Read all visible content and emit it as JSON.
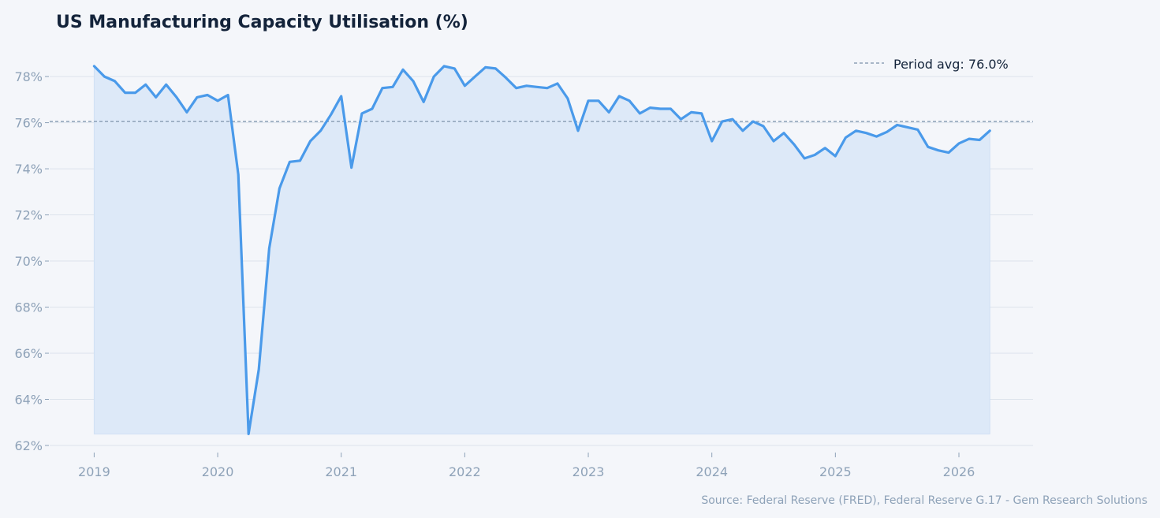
{
  "chart_data": {
    "type": "area",
    "title": "US Manufacturing Capacity Utilisation (%)",
    "source": "Source: Federal Reserve (FRED), Federal Reserve G.17 - Gem Research Solutions",
    "y_unit": "%",
    "ylim": [
      62,
      79.2
    ],
    "xlim": [
      2018.64,
      2026.6
    ],
    "y_ticks": [
      62,
      64,
      66,
      68,
      70,
      72,
      74,
      76,
      78
    ],
    "y_tick_labels": [
      "62%",
      "64%",
      "66%",
      "68%",
      "70%",
      "72%",
      "74%",
      "76%",
      "78%"
    ],
    "x_ticks": [
      2019,
      2020,
      2021,
      2022,
      2023,
      2024,
      2025,
      2026
    ],
    "x_tick_labels": [
      "2019",
      "2020",
      "2021",
      "2022",
      "2023",
      "2024",
      "2025",
      "2026"
    ],
    "grid": true,
    "legend_placement": "top-right",
    "reference_line": {
      "label": "Period avg: 76.0%",
      "value": 76.05
    },
    "colors": {
      "line": "#4a9aea",
      "fill": "#dde9f8",
      "avg_line": "#8ea2b8",
      "grid": "#dde3ec",
      "background": "#f4f6fa",
      "title": "#13233a",
      "ticks": "#8ea2b8"
    },
    "series": [
      {
        "x": [
          2019.0,
          2019.083,
          2019.167,
          2019.25,
          2019.333,
          2019.417,
          2019.5,
          2019.583,
          2019.667,
          2019.75,
          2019.833,
          2019.917,
          2020.0,
          2020.083,
          2020.167,
          2020.25,
          2020.333,
          2020.417,
          2020.5,
          2020.583,
          2020.667,
          2020.75,
          2020.833,
          2020.917,
          2021.0,
          2021.083,
          2021.167,
          2021.25,
          2021.333,
          2021.417,
          2021.5,
          2021.583,
          2021.667,
          2021.75,
          2021.833,
          2021.917,
          2022.0,
          2022.083,
          2022.167,
          2022.25,
          2022.333,
          2022.417,
          2022.5,
          2022.583,
          2022.667,
          2022.75,
          2022.833,
          2022.917,
          2023.0,
          2023.083,
          2023.167,
          2023.25,
          2023.333,
          2023.417,
          2023.5,
          2023.583,
          2023.667,
          2023.75,
          2023.833,
          2023.917,
          2024.0,
          2024.083,
          2024.167,
          2024.25,
          2024.333,
          2024.417,
          2024.5,
          2024.583,
          2024.667,
          2024.75,
          2024.833,
          2024.917,
          2025.0,
          2025.083,
          2025.167,
          2025.25,
          2025.333,
          2025.417,
          2025.5,
          2025.583,
          2025.667,
          2025.75,
          2025.833,
          2025.917,
          2026.0,
          2026.083,
          2026.167,
          2026.25
        ],
        "values": [
          78.45,
          78.0,
          77.8,
          77.3,
          77.3,
          77.65,
          77.1,
          77.65,
          77.1,
          76.45,
          77.1,
          77.2,
          76.95,
          77.2,
          73.75,
          62.5,
          65.3,
          70.55,
          73.15,
          74.3,
          74.35,
          75.2,
          75.65,
          76.35,
          77.15,
          74.05,
          76.4,
          76.6,
          77.5,
          77.55,
          78.3,
          77.8,
          76.9,
          78.0,
          78.45,
          78.35,
          77.6,
          78.0,
          78.4,
          78.35,
          77.95,
          77.5,
          77.6,
          77.55,
          77.5,
          77.7,
          77.05,
          75.65,
          76.95,
          76.95,
          76.45,
          77.15,
          76.95,
          76.4,
          76.65,
          76.6,
          76.6,
          76.15,
          76.45,
          76.4,
          75.2,
          76.05,
          76.15,
          75.65,
          76.05,
          75.85,
          75.2,
          75.55,
          75.05,
          74.45,
          74.6,
          74.9,
          74.55,
          75.35,
          75.65,
          75.55,
          75.4,
          75.6,
          75.9,
          75.8,
          75.7,
          74.95,
          74.8,
          74.7,
          75.1,
          75.3,
          75.25,
          75.65
        ]
      }
    ]
  }
}
